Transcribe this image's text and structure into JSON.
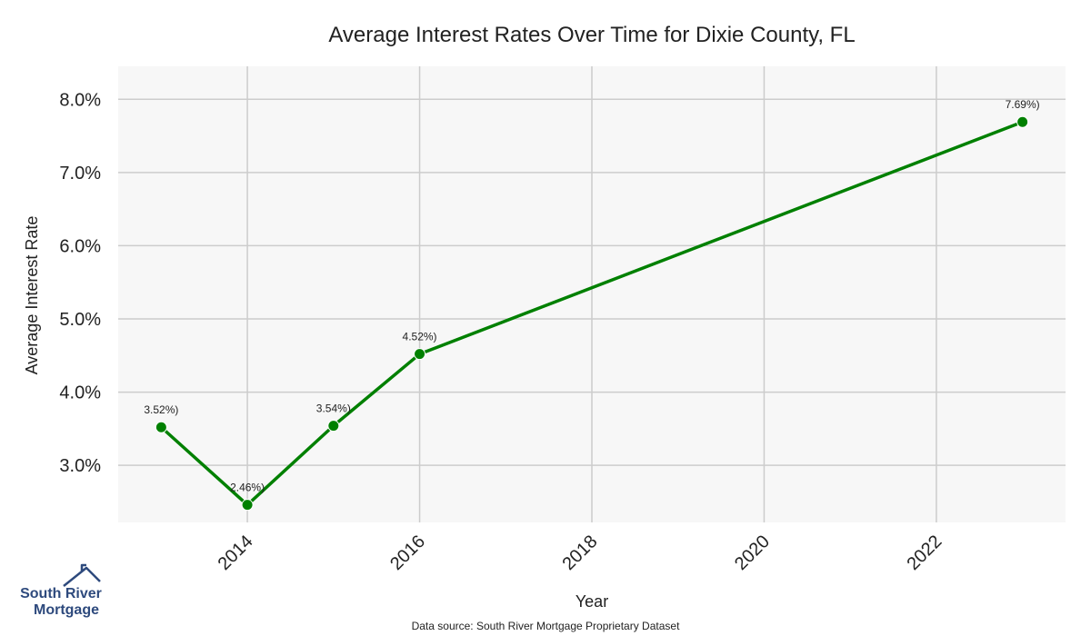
{
  "chart_data": {
    "type": "line",
    "title": "Average Interest Rates Over Time for Dixie County, FL",
    "xlabel": "Year",
    "ylabel": "Average Interest Rate",
    "x": [
      2013,
      2014,
      2015,
      2016,
      2023
    ],
    "series": [
      {
        "values": [
          3.52,
          2.46,
          3.54,
          4.52,
          7.69
        ],
        "color": "#008000"
      }
    ],
    "data_labels": [
      "3.52%)",
      "2.46%)",
      "3.54%)",
      "4.52%)",
      "7.69%)"
    ],
    "xticks": [
      2014,
      2016,
      2018,
      2020,
      2022
    ],
    "yticks": [
      3.0,
      4.0,
      5.0,
      6.0,
      7.0,
      8.0
    ],
    "ytick_labels": [
      "3.0%",
      "4.0%",
      "5.0%",
      "6.0%",
      "7.0%",
      "8.0%"
    ],
    "xlim": [
      2012.5,
      2023.5
    ],
    "ylim": [
      2.22,
      8.45
    ],
    "grid": true,
    "background": "#f7f7f7",
    "grid_color": "#cccccc"
  },
  "footer": {
    "source": "Data source: South River Mortgage Proprietary Dataset"
  },
  "logo": {
    "line1": "South River",
    "line2": "Mortgage",
    "color": "#2e4a7d"
  }
}
